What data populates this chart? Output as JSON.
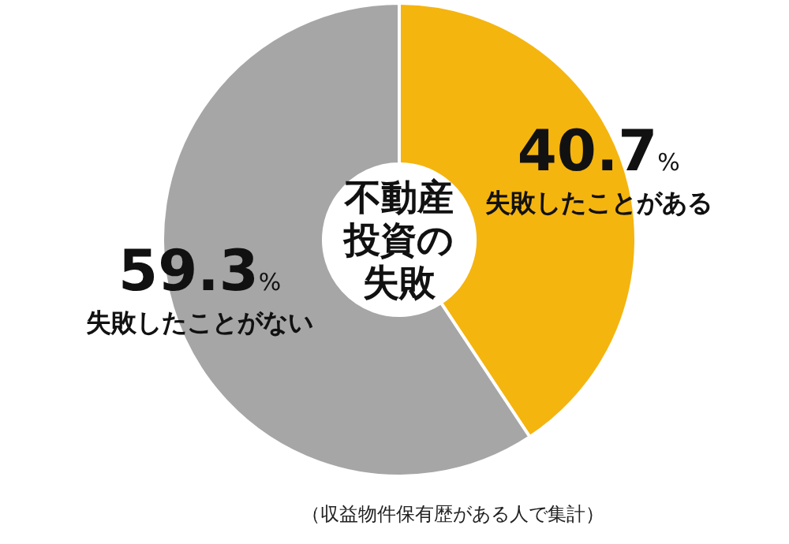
{
  "chart_data": {
    "type": "donut",
    "title": "不動産投資の失敗",
    "categories": [
      "失敗したことがある",
      "失敗したことがない"
    ],
    "values": [
      40.7,
      59.3
    ],
    "value_labels": [
      "40.7%",
      "59.3%"
    ],
    "colors": [
      "#f5b50f",
      "#a6a6a6"
    ],
    "annotations": [
      "（収益物件保有歴がある人で集計）"
    ]
  }
}
